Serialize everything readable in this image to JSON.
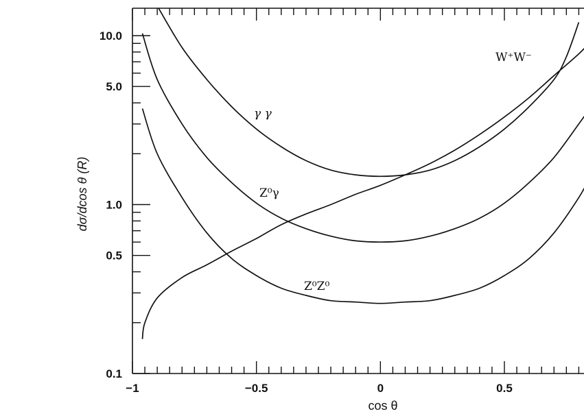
{
  "chart_data": {
    "type": "line",
    "title": "",
    "xlabel": "cos θ",
    "ylabel": "dσ/dcos θ (R)",
    "xlim": [
      -1,
      0.85
    ],
    "ylim": [
      0.1,
      15
    ],
    "yscale": "log",
    "grid": false,
    "x_tick_labels": [
      "−1",
      "−0.5",
      "0",
      "0.5"
    ],
    "x_tick_values": [
      -1,
      -0.5,
      0,
      0.5
    ],
    "y_tick_labels": [
      "0.1",
      "0.5",
      "1.0",
      "5.0",
      "10.0"
    ],
    "y_tick_values": [
      0.1,
      0.5,
      1.0,
      5.0,
      10.0
    ],
    "series": [
      {
        "name": "γ γ",
        "x": [
          -0.9,
          -0.8,
          -0.7,
          -0.6,
          -0.5,
          -0.4,
          -0.3,
          -0.2,
          -0.1,
          0.0,
          0.1,
          0.2,
          0.3,
          0.4,
          0.5,
          0.6,
          0.7,
          0.75,
          0.8
        ],
        "y": [
          15.0,
          8.5,
          5.5,
          3.8,
          2.8,
          2.2,
          1.82,
          1.6,
          1.5,
          1.47,
          1.5,
          1.6,
          1.82,
          2.2,
          2.8,
          3.8,
          5.5,
          7.5,
          12.0
        ]
      },
      {
        "name": "Z⁰γ",
        "x": [
          -0.96,
          -0.9,
          -0.8,
          -0.7,
          -0.6,
          -0.5,
          -0.4,
          -0.3,
          -0.2,
          -0.1,
          0.0,
          0.1,
          0.2,
          0.3,
          0.4,
          0.5,
          0.6,
          0.7,
          0.8,
          0.85
        ],
        "y": [
          10.3,
          5.5,
          3.0,
          1.9,
          1.35,
          1.02,
          0.83,
          0.72,
          0.65,
          0.61,
          0.6,
          0.61,
          0.65,
          0.72,
          0.83,
          1.02,
          1.35,
          1.9,
          3.0,
          3.8
        ]
      },
      {
        "name": "Z⁰Z⁰",
        "x": [
          -0.96,
          -0.9,
          -0.8,
          -0.7,
          -0.6,
          -0.5,
          -0.4,
          -0.3,
          -0.2,
          -0.1,
          0.0,
          0.1,
          0.2,
          0.3,
          0.4,
          0.5,
          0.6,
          0.7,
          0.8,
          0.85
        ],
        "y": [
          3.7,
          2.0,
          1.1,
          0.68,
          0.48,
          0.38,
          0.32,
          0.29,
          0.27,
          0.265,
          0.26,
          0.265,
          0.27,
          0.29,
          0.32,
          0.38,
          0.48,
          0.68,
          1.1,
          1.5
        ]
      },
      {
        "name": "W⁺W⁻",
        "x": [
          -0.96,
          -0.95,
          -0.9,
          -0.8,
          -0.7,
          -0.6,
          -0.5,
          -0.4,
          -0.3,
          -0.2,
          -0.1,
          0.0,
          0.1,
          0.2,
          0.3,
          0.4,
          0.5,
          0.6,
          0.7,
          0.8,
          0.85
        ],
        "y": [
          0.16,
          0.2,
          0.28,
          0.37,
          0.44,
          0.53,
          0.63,
          0.76,
          0.88,
          1.0,
          1.15,
          1.3,
          1.5,
          1.75,
          2.1,
          2.6,
          3.3,
          4.3,
          5.8,
          7.8,
          9.3
        ]
      }
    ],
    "annotations": [
      "W⁺W⁻",
      "γ γ",
      "Z⁰γ",
      "Z⁰Z⁰"
    ]
  }
}
